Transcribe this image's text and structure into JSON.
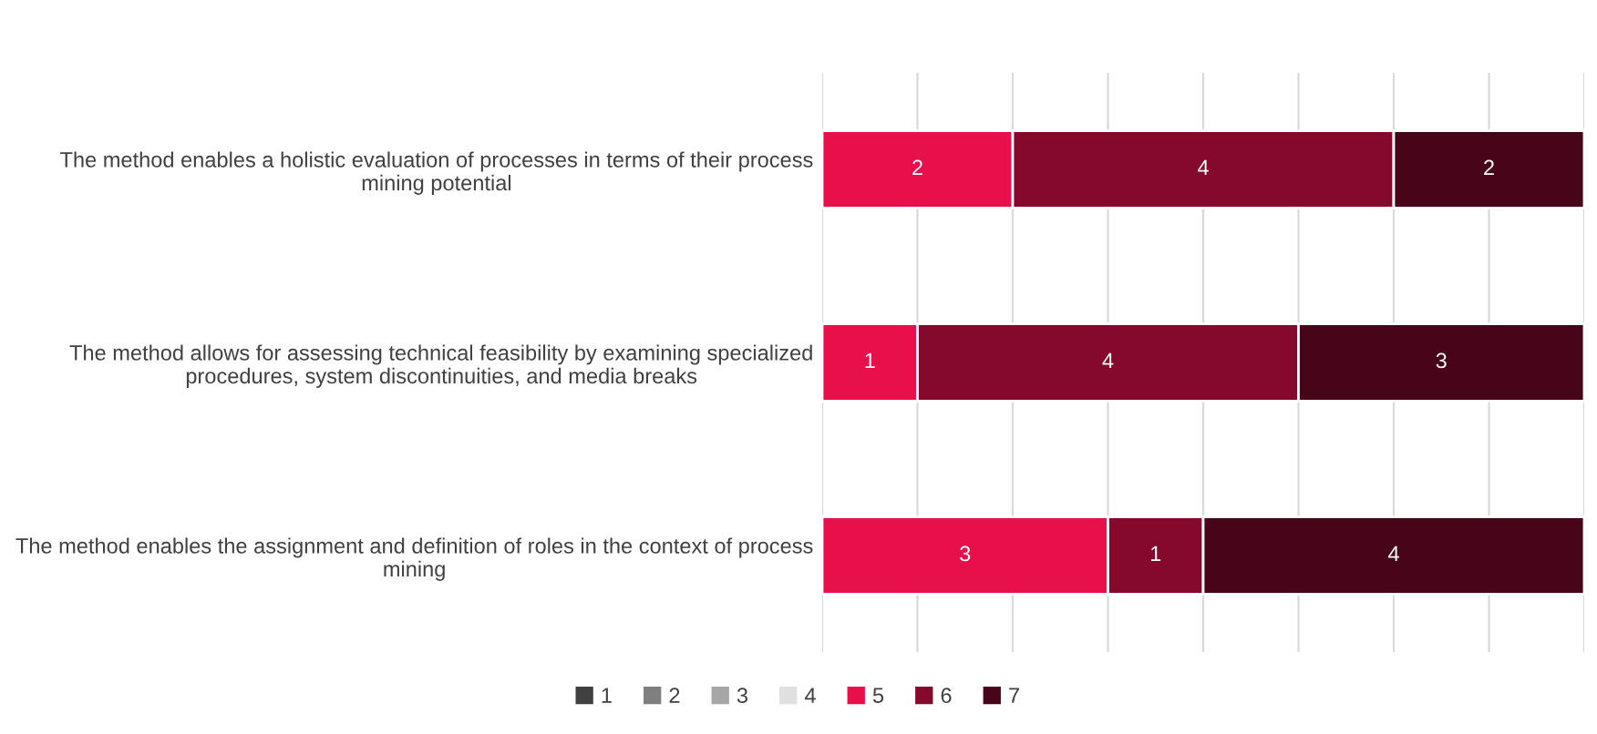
{
  "chart_data": {
    "type": "bar",
    "orientation": "horizontal",
    "stacked": true,
    "categories": [
      "The method enables a holistic evaluation of processes in terms of their process mining potential",
      "The method allows for assessing technical feasibility by examining specialized procedures, system discontinuities, and media breaks",
      "The method enables the assignment and definition of roles in the context of process mining"
    ],
    "series": [
      {
        "name": "1",
        "color": "#404040",
        "values": [
          0,
          0,
          0
        ],
        "value_labels": [
          null,
          null,
          null
        ]
      },
      {
        "name": "2",
        "color": "#7f7f7f",
        "values": [
          0,
          0,
          0
        ],
        "value_labels": [
          null,
          null,
          null
        ]
      },
      {
        "name": "3",
        "color": "#a6a6a6",
        "values": [
          0,
          0,
          0
        ],
        "value_labels": [
          null,
          null,
          null
        ]
      },
      {
        "name": "4",
        "color": "#e0e0e0",
        "values": [
          0,
          0,
          0
        ],
        "value_labels": [
          null,
          null,
          null
        ]
      },
      {
        "name": "5",
        "color": "#e8104b",
        "values": [
          2,
          1,
          3
        ],
        "value_labels": [
          "2",
          "1",
          "3"
        ]
      },
      {
        "name": "6",
        "color": "#85082d",
        "values": [
          4,
          4,
          1
        ],
        "value_labels": [
          "4",
          "4",
          "1"
        ]
      },
      {
        "name": "7",
        "color": "#480418",
        "values": [
          2,
          3,
          4
        ],
        "value_labels": [
          "2",
          "3",
          "4"
        ]
      }
    ],
    "xlim": [
      0,
      8
    ],
    "xticks": [
      {
        "value": 0,
        "label": null
      },
      {
        "value": 1,
        "label": null
      },
      {
        "value": 2,
        "label": null
      },
      {
        "value": 3,
        "label": null
      },
      {
        "value": 4,
        "label": null
      },
      {
        "value": 5,
        "label": null
      },
      {
        "value": 6,
        "label": null
      },
      {
        "value": 7,
        "label": null
      },
      {
        "value": 8,
        "label": null
      }
    ],
    "tick_labels": "y",
    "grid": "x",
    "legend": "bottom"
  }
}
